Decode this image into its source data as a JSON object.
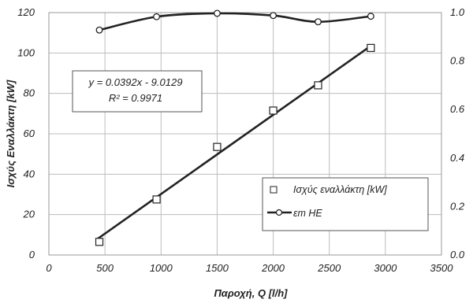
{
  "chart_data": {
    "type": "scatter",
    "x_axis": {
      "label": "Παροχή, Q [l/h]",
      "range": [
        0,
        3500
      ],
      "ticks": [
        0,
        500,
        1000,
        1500,
        2000,
        2500,
        3000,
        3500
      ]
    },
    "y_axis_left": {
      "label": "Ισχύς Εναλλάκτη [kW]",
      "range": [
        0,
        120
      ],
      "ticks": [
        0,
        20,
        40,
        60,
        80,
        100,
        120
      ]
    },
    "y_axis_right": {
      "range": [
        0.0,
        1.0
      ],
      "ticks": [
        "0.0",
        "0.2",
        "0.4",
        "0.6",
        "0.8",
        "1.0"
      ]
    },
    "grid": true,
    "legend_position": "bottom-right",
    "series": [
      {
        "name": "Ισχύς εναλλάκτη [kW]",
        "axis": "left",
        "marker": "square",
        "color": "#222222",
        "points": [
          {
            "x": 450,
            "y": 6.5
          },
          {
            "x": 960,
            "y": 27.5
          },
          {
            "x": 1500,
            "y": 53.5
          },
          {
            "x": 2000,
            "y": 71.5
          },
          {
            "x": 2400,
            "y": 84.0
          },
          {
            "x": 2870,
            "y": 102.5
          }
        ]
      },
      {
        "name": "εm HE",
        "axis": "right",
        "marker": "circle",
        "line": "smooth",
        "color": "#222222",
        "points": [
          {
            "x": 450,
            "y": 0.928
          },
          {
            "x": 960,
            "y": 0.983
          },
          {
            "x": 1500,
            "y": 0.997
          },
          {
            "x": 2000,
            "y": 0.988
          },
          {
            "x": 2400,
            "y": 0.962
          },
          {
            "x": 2870,
            "y": 0.985
          }
        ]
      }
    ],
    "trendline": {
      "series": "Ισχύς εναλλάκτη [kW]",
      "slope": 0.0392,
      "intercept": -9.0129,
      "equation": "y = 0.0392x - 9.0129",
      "r2_label": "R² = 0.9971"
    }
  }
}
